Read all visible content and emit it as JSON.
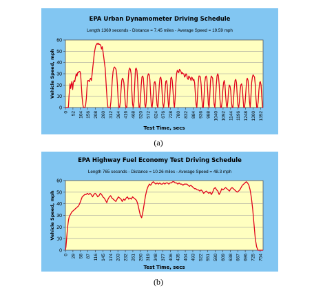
{
  "captions": [
    "(a)",
    "(b)"
  ],
  "colors": {
    "panel_bg": "#82c6f2",
    "plot_bg": "#ffffc0",
    "line": "#e0001a"
  },
  "chart_data": [
    {
      "type": "line",
      "title": "EPA Urban Dynamometer Driving Schedule",
      "subtitle": "Length 1369 seconds - Distance = 7.45 miles - Average Speed = 19.59 mph",
      "xlabel": "Test Time, secs",
      "ylabel": "Vehicle Speed, mph",
      "xlim": [
        0,
        1369
      ],
      "ylim": [
        0,
        60
      ],
      "yticks": [
        0,
        10,
        20,
        30,
        40,
        50,
        60
      ],
      "xticks": [
        0,
        52,
        104,
        156,
        208,
        260,
        312,
        364,
        416,
        468,
        520,
        572,
        624,
        676,
        728,
        780,
        832,
        884,
        936,
        988,
        1040,
        1092,
        1144,
        1196,
        1248,
        1300,
        1352
      ],
      "grid": true,
      "series": [
        {
          "x": [
            0,
            20,
            22,
            25,
            28,
            32,
            36,
            40,
            45,
            50,
            55,
            60,
            65,
            70,
            75,
            80,
            85,
            90,
            95,
            100,
            105,
            110,
            115,
            120,
            125,
            130,
            135,
            140,
            145,
            150,
            155,
            160,
            165,
            170,
            175,
            180,
            185,
            190,
            195,
            200,
            205,
            210,
            215,
            220,
            225,
            230,
            235,
            240,
            245,
            250,
            255,
            260,
            265,
            270,
            275,
            280,
            285,
            290,
            295,
            300,
            305,
            310,
            315,
            320,
            325,
            330,
            335,
            340,
            345,
            350,
            355,
            360,
            365,
            370,
            375,
            380,
            385,
            390,
            395,
            400,
            405,
            410,
            415,
            420,
            425,
            430,
            435,
            440,
            445,
            450,
            455,
            460,
            465,
            470,
            475,
            480,
            485,
            490,
            495,
            500,
            505,
            510,
            515,
            520,
            525,
            530,
            535,
            540,
            545,
            550,
            555,
            560,
            565,
            570,
            575,
            580,
            585,
            590,
            595,
            600,
            605,
            610,
            615,
            620,
            625,
            630,
            635,
            640,
            645,
            650,
            655,
            660,
            665,
            670,
            675,
            680,
            685,
            690,
            695,
            700,
            705,
            710,
            715,
            720,
            725,
            730,
            735,
            740,
            745,
            750,
            755,
            760,
            765,
            770,
            775,
            780,
            785,
            790,
            795,
            800,
            805,
            810,
            815,
            820,
            825,
            830,
            835,
            840,
            845,
            850,
            855,
            860,
            865,
            870,
            875,
            880,
            885,
            890,
            895,
            900,
            905,
            910,
            915,
            920,
            925,
            930,
            935,
            940,
            945,
            950,
            955,
            960,
            965,
            970,
            975,
            980,
            985,
            990,
            995,
            1000,
            1005,
            1010,
            1015,
            1020,
            1025,
            1030,
            1035,
            1040,
            1045,
            1050,
            1055,
            1060,
            1065,
            1070,
            1075,
            1080,
            1085,
            1090,
            1095,
            1100,
            1105,
            1110,
            1115,
            1120,
            1125,
            1130,
            1135,
            1140,
            1145,
            1150,
            1155,
            1160,
            1165,
            1170,
            1175,
            1180,
            1185,
            1190,
            1195,
            1200,
            1205,
            1210,
            1215,
            1220,
            1225,
            1230,
            1235,
            1240,
            1245,
            1250,
            1255,
            1260,
            1265,
            1270,
            1275,
            1280,
            1285,
            1290,
            1295,
            1300,
            1305,
            1310,
            1315,
            1320,
            1325,
            1330,
            1335,
            1340,
            1345,
            1350,
            1355,
            1360,
            1365,
            1369
          ],
          "y": [
            0,
            0,
            3,
            10,
            15,
            21,
            17,
            20,
            23,
            16,
            22,
            24,
            23,
            27,
            30,
            28,
            31,
            31,
            32,
            32,
            30,
            20,
            10,
            3,
            0,
            0,
            0,
            2,
            8,
            18,
            24,
            24,
            23,
            25,
            26,
            24,
            30,
            36,
            42,
            48,
            52,
            55,
            56,
            57,
            56,
            57,
            56,
            56,
            55,
            52,
            54,
            50,
            45,
            40,
            35,
            25,
            15,
            5,
            0,
            0,
            0,
            0,
            5,
            15,
            25,
            32,
            35,
            36,
            35,
            34,
            30,
            20,
            8,
            0,
            0,
            5,
            15,
            24,
            26,
            25,
            22,
            12,
            3,
            0,
            0,
            10,
            25,
            33,
            35,
            34,
            30,
            15,
            3,
            0,
            5,
            20,
            34,
            35,
            33,
            25,
            10,
            0,
            0,
            8,
            20,
            27,
            28,
            26,
            15,
            3,
            0,
            5,
            18,
            28,
            30,
            29,
            25,
            12,
            2,
            0,
            5,
            15,
            22,
            23,
            20,
            10,
            2,
            0,
            8,
            20,
            26,
            27,
            24,
            12,
            3,
            0,
            5,
            15,
            23,
            24,
            20,
            8,
            0,
            4,
            15,
            26,
            27,
            24,
            15,
            5,
            0,
            8,
            22,
            30,
            33,
            32,
            31,
            34,
            33,
            32,
            30,
            31,
            30,
            30,
            27,
            28,
            30,
            29,
            26,
            25,
            28,
            27,
            26,
            24,
            27,
            26,
            24,
            25,
            22,
            12,
            3,
            0,
            10,
            22,
            28,
            28,
            27,
            20,
            8,
            0,
            0,
            10,
            22,
            27,
            28,
            26,
            15,
            3,
            0,
            10,
            24,
            28,
            27,
            26,
            15,
            3,
            0,
            8,
            20,
            28,
            30,
            28,
            20,
            8,
            0,
            0,
            5,
            15,
            22,
            24,
            20,
            10,
            2,
            0,
            5,
            15,
            20,
            19,
            15,
            5,
            0,
            0,
            8,
            18,
            24,
            25,
            22,
            10,
            2,
            0,
            5,
            15,
            20,
            21,
            18,
            8,
            0,
            0,
            5,
            15,
            24,
            26,
            24,
            15,
            5,
            0,
            10,
            22,
            27,
            29,
            28,
            27,
            20,
            8,
            0,
            0,
            5,
            15,
            22,
            23,
            20,
            10,
            0,
            0
          ]
        }
      ]
    },
    {
      "type": "line",
      "title": "EPA Highway Fuel Economy Test Driving Schedule",
      "subtitle": "Length 765 seconds - Distance = 10.26 miles - Average Speed = 48.3 mph",
      "xlabel": "Test Time, secs",
      "ylabel": "Vehicle Speed, mph",
      "xlim": [
        0,
        765
      ],
      "ylim": [
        0,
        60
      ],
      "yticks": [
        0,
        10,
        20,
        30,
        40,
        50,
        60
      ],
      "xticks": [
        0,
        29,
        58,
        87,
        116,
        145,
        174,
        203,
        232,
        261,
        290,
        319,
        348,
        377,
        406,
        435,
        464,
        493,
        522,
        551,
        580,
        609,
        638,
        667,
        696,
        725,
        754
      ],
      "grid": true,
      "series": [
        {
          "x": [
            0,
            2,
            4,
            6,
            8,
            10,
            12,
            15,
            20,
            25,
            30,
            35,
            40,
            45,
            50,
            55,
            60,
            65,
            70,
            75,
            80,
            85,
            90,
            95,
            100,
            105,
            110,
            115,
            120,
            125,
            130,
            135,
            140,
            145,
            150,
            155,
            160,
            165,
            170,
            175,
            180,
            185,
            190,
            195,
            200,
            205,
            210,
            215,
            220,
            225,
            230,
            235,
            240,
            245,
            250,
            255,
            260,
            265,
            270,
            275,
            280,
            285,
            290,
            295,
            300,
            305,
            310,
            315,
            320,
            325,
            330,
            335,
            340,
            345,
            350,
            355,
            360,
            365,
            370,
            375,
            380,
            385,
            390,
            395,
            400,
            405,
            410,
            415,
            420,
            425,
            430,
            435,
            440,
            445,
            450,
            455,
            460,
            465,
            470,
            475,
            480,
            485,
            490,
            495,
            500,
            505,
            510,
            515,
            520,
            525,
            530,
            535,
            540,
            545,
            550,
            555,
            560,
            565,
            570,
            575,
            580,
            585,
            590,
            595,
            600,
            605,
            610,
            615,
            620,
            625,
            630,
            635,
            640,
            645,
            650,
            655,
            660,
            665,
            670,
            675,
            680,
            685,
            690,
            695,
            700,
            705,
            710,
            715,
            720,
            725,
            730,
            735,
            740,
            745,
            750,
            755,
            760,
            765
          ],
          "y": [
            0,
            3,
            8,
            14,
            19,
            23,
            26,
            29,
            31,
            33,
            34,
            35,
            36,
            37,
            38,
            40,
            43,
            46,
            47,
            48,
            48,
            49,
            48,
            49,
            48,
            46,
            48,
            49,
            48,
            46,
            47,
            49,
            48,
            46,
            45,
            43,
            41,
            44,
            46,
            47,
            45,
            44,
            43,
            42,
            44,
            46,
            45,
            44,
            42,
            44,
            43,
            45,
            46,
            44,
            45,
            44,
            46,
            45,
            44,
            43,
            40,
            35,
            30,
            28,
            33,
            40,
            47,
            52,
            55,
            57,
            56,
            58,
            59,
            58,
            57,
            58,
            57,
            58,
            57,
            57,
            58,
            57,
            58,
            58,
            57,
            58,
            58,
            59,
            59,
            58,
            58,
            57,
            58,
            57,
            57,
            56,
            57,
            57,
            57,
            56,
            55,
            56,
            55,
            54,
            53,
            53,
            52,
            52,
            51,
            52,
            51,
            49,
            50,
            51,
            50,
            49,
            50,
            48,
            50,
            53,
            54,
            52,
            51,
            48,
            50,
            53,
            52,
            53,
            54,
            53,
            52,
            51,
            53,
            54,
            53,
            52,
            51,
            50,
            51,
            52,
            54,
            56,
            57,
            58,
            59,
            58,
            56,
            52,
            45,
            35,
            22,
            10,
            3,
            0,
            0,
            0,
            0,
            0
          ]
        }
      ]
    }
  ]
}
